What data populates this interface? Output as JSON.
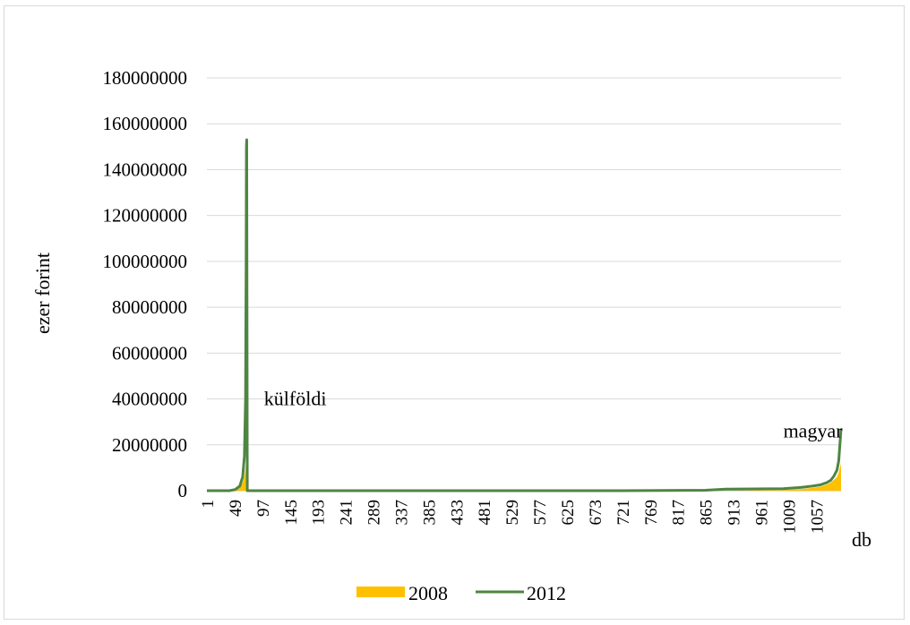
{
  "chart_data": {
    "type": "area",
    "ylabel": "ezer forint",
    "xlabel": "db",
    "ylim": [
      0,
      180000000
    ],
    "xlim": [
      1,
      1100
    ],
    "yticks": [
      "0",
      "20000000",
      "40000000",
      "60000000",
      "80000000",
      "100000000",
      "120000000",
      "140000000",
      "160000000",
      "180000000"
    ],
    "xticks": [
      "1",
      "49",
      "97",
      "145",
      "193",
      "241",
      "289",
      "337",
      "385",
      "433",
      "481",
      "529",
      "577",
      "625",
      "673",
      "721",
      "769",
      "817",
      "865",
      "913",
      "961",
      "1009",
      "1057"
    ],
    "grid": true,
    "legend_position": "bottom",
    "annotations": [
      {
        "text": "külföldi",
        "x": 100,
        "y": 40000000
      },
      {
        "text": "magyar",
        "x": 1000,
        "y": 26000000
      }
    ],
    "series": [
      {
        "name": "2008",
        "style": "area",
        "color": "#ffc000",
        "x": [
          1,
          40,
          50,
          58,
          63,
          66,
          68,
          69,
          70,
          71,
          900,
          1000,
          1030,
          1050,
          1065,
          1075,
          1082,
          1088,
          1093,
          1096,
          1098,
          1100
        ],
        "values": [
          0,
          0,
          400000,
          1500000,
          3500000,
          6000000,
          10000000,
          12000000,
          4000000,
          0,
          0,
          300000,
          700000,
          1200000,
          1800000,
          2600000,
          3500000,
          4800000,
          6000000,
          8000000,
          10000000,
          12000000
        ]
      },
      {
        "name": "2012",
        "style": "line",
        "color": "#4e8542",
        "x": [
          1,
          40,
          50,
          58,
          63,
          66,
          68,
          69,
          69.5,
          70,
          70.5,
          71,
          720,
          865,
          900,
          1000,
          1030,
          1050,
          1065,
          1075,
          1082,
          1088,
          1093,
          1096,
          1098,
          1100
        ],
        "values": [
          0,
          0,
          500000,
          2000000,
          6000000,
          15000000,
          40000000,
          100000000,
          150000000,
          153000000,
          80000000,
          0,
          0,
          200000,
          700000,
          900000,
          1400000,
          2000000,
          2600000,
          3500000,
          4500000,
          6500000,
          9000000,
          13000000,
          20000000,
          27000000
        ]
      }
    ]
  }
}
